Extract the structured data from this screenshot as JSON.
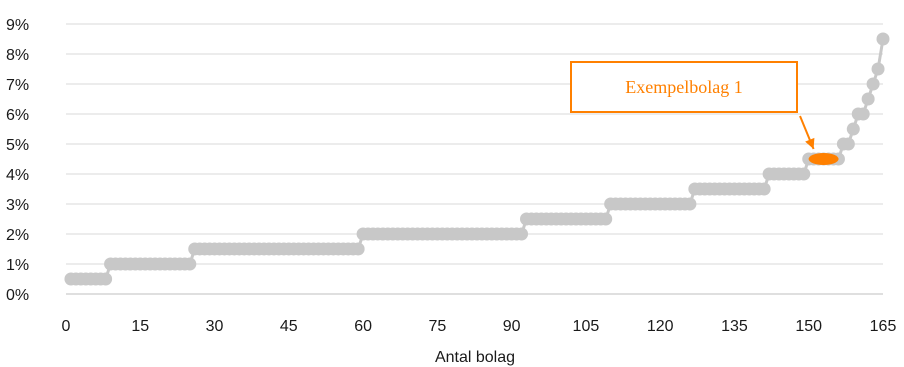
{
  "chart_data": {
    "type": "scatter",
    "title": "",
    "xlabel": "Antal bolag",
    "ylabel": "",
    "xlim": [
      0,
      165
    ],
    "ylim": [
      0,
      9
    ],
    "x_ticks": [
      "0",
      "15",
      "30",
      "45",
      "60",
      "75",
      "90",
      "105",
      "120",
      "135",
      "150",
      "165"
    ],
    "y_ticks": [
      "0%",
      "1%",
      "2%",
      "3%",
      "4%",
      "5%",
      "6%",
      "7%",
      "8%",
      "9%"
    ],
    "grid": "horizontal",
    "legend": "none",
    "colors": {
      "points": "#c8c8c8",
      "highlight": "#ff8000",
      "grid": "#d9d9d9",
      "axis": "#bfbfbf"
    },
    "series": [
      {
        "segments": [
          {
            "x_from": 1,
            "x_to": 8,
            "y": 0.5
          },
          {
            "x_from": 9,
            "x_to": 25,
            "y": 1.0
          },
          {
            "x_from": 26,
            "x_to": 59,
            "y": 1.5
          },
          {
            "x_from": 60,
            "x_to": 92,
            "y": 2.0
          },
          {
            "x_from": 93,
            "x_to": 109,
            "y": 2.5
          },
          {
            "x_from": 110,
            "x_to": 126,
            "y": 3.0
          },
          {
            "x_from": 127,
            "x_to": 141,
            "y": 3.5
          },
          {
            "x_from": 142,
            "x_to": 149,
            "y": 4.0
          },
          {
            "x_from": 150,
            "x_to": 156,
            "y": 4.5
          }
        ],
        "points": [
          {
            "x": 157,
            "y": 5.0
          },
          {
            "x": 158,
            "y": 5.0
          },
          {
            "x": 159,
            "y": 5.5
          },
          {
            "x": 160,
            "y": 6.0
          },
          {
            "x": 161,
            "y": 6.0
          },
          {
            "x": 162,
            "y": 6.5
          },
          {
            "x": 163,
            "y": 7.0
          },
          {
            "x": 164,
            "y": 7.5
          },
          {
            "x": 165,
            "y": 8.5
          }
        ]
      }
    ],
    "highlight": {
      "x": 153,
      "y": 4.5,
      "label": "Exempelbolag 1"
    }
  }
}
